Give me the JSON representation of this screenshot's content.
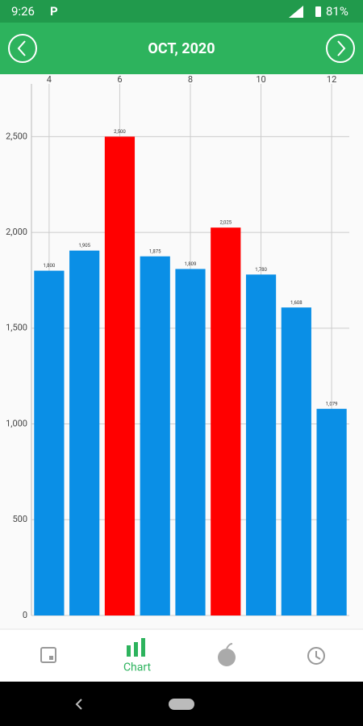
{
  "status_bar": {
    "time": "9:26",
    "app_icon": "P",
    "battery": "81%"
  },
  "header": {
    "title": "OCT, 2020"
  },
  "chart_data": {
    "type": "bar",
    "x": [
      4,
      5,
      6,
      7,
      8,
      9,
      10,
      11,
      12
    ],
    "values": [
      1800,
      1905,
      2500,
      1875,
      1809,
      2025,
      1780,
      1608,
      1079
    ],
    "value_labels": [
      "1,800",
      "1,905",
      "2,500",
      "1,875",
      "1,809",
      "2,025",
      "1,780",
      "1,608",
      "1,079"
    ],
    "colors": [
      "#0a8fe6",
      "#0a8fe6",
      "#ff0000",
      "#0a8fe6",
      "#0a8fe6",
      "#ff0000",
      "#0a8fe6",
      "#0a8fe6",
      "#0a8fe6"
    ],
    "xlim": [
      3.5,
      12.5
    ],
    "xticks": [
      4,
      6,
      8,
      10,
      12
    ],
    "ylim": [
      0,
      2750
    ],
    "yticks": [
      0,
      500,
      {
        "value": 1000,
        "label": "1,000"
      },
      {
        "value": 1500,
        "label": "1,500"
      },
      {
        "value": 2000,
        "label": "2,000"
      },
      {
        "value": 2500,
        "label": "2,500"
      }
    ],
    "grid": true
  },
  "bottom_nav": {
    "active_label": "Chart"
  }
}
